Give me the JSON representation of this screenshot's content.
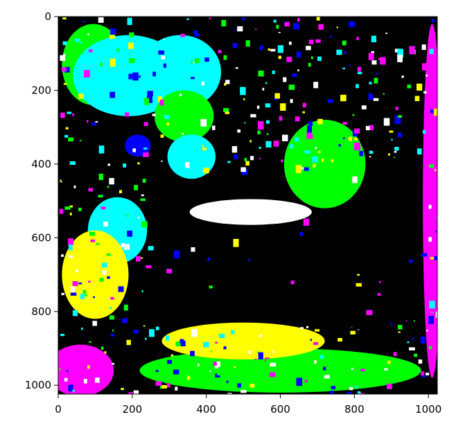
{
  "chart_data": {
    "type": "heatmap",
    "title": "",
    "xlabel": "",
    "ylabel": "",
    "xlim": [
      0,
      1024
    ],
    "ylim": [
      1024,
      0
    ],
    "xticks": [
      0,
      200,
      400,
      600,
      800,
      1000
    ],
    "yticks": [
      0,
      200,
      400,
      600,
      800,
      1000
    ],
    "palette": {
      "background": "#000000",
      "cyan": "#00ffff",
      "green": "#00ff00",
      "yellow": "#ffff00",
      "magenta": "#ff00ff",
      "blue": "#0000ff",
      "white": "#ffffff",
      "red": "#ff0000"
    },
    "regions": [
      {
        "name": "green-upper-left",
        "color": "green",
        "center": [
          95,
          130
        ],
        "radius": [
          85,
          110
        ]
      },
      {
        "name": "cyan-upper-left",
        "color": "cyan",
        "center": [
          190,
          160
        ],
        "radius": [
          150,
          110
        ]
      },
      {
        "name": "cyan-top-middle",
        "color": "cyan",
        "center": [
          330,
          150
        ],
        "radius": [
          110,
          100
        ]
      },
      {
        "name": "green-top-center",
        "color": "green",
        "center": [
          340,
          270
        ],
        "radius": [
          80,
          70
        ]
      },
      {
        "name": "cyan-center",
        "color": "cyan",
        "center": [
          360,
          380
        ],
        "radius": [
          65,
          60
        ]
      },
      {
        "name": "green-right-blob",
        "color": "green",
        "center": [
          720,
          400
        ],
        "radius": [
          110,
          120
        ]
      },
      {
        "name": "white-arc",
        "color": "white",
        "center": [
          520,
          530
        ],
        "radius": [
          165,
          35
        ]
      },
      {
        "name": "cyan-left-mid",
        "color": "cyan",
        "center": [
          160,
          580
        ],
        "radius": [
          80,
          90
        ]
      },
      {
        "name": "blue-left",
        "color": "blue",
        "center": [
          215,
          350
        ],
        "radius": [
          35,
          30
        ]
      },
      {
        "name": "yellow-left-band",
        "color": "yellow",
        "center": [
          100,
          700
        ],
        "radius": [
          90,
          120
        ]
      },
      {
        "name": "magenta-bottom-left",
        "color": "magenta",
        "center": [
          60,
          960
        ],
        "radius": [
          90,
          70
        ]
      },
      {
        "name": "green-bottom-band",
        "color": "green",
        "center": [
          600,
          960
        ],
        "radius": [
          380,
          60
        ]
      },
      {
        "name": "yellow-bottom-band",
        "color": "yellow",
        "center": [
          500,
          880
        ],
        "radius": [
          220,
          50
        ]
      },
      {
        "name": "magenta-right-edge",
        "color": "magenta",
        "center": [
          1010,
          500
        ],
        "radius": [
          25,
          480
        ]
      }
    ]
  }
}
